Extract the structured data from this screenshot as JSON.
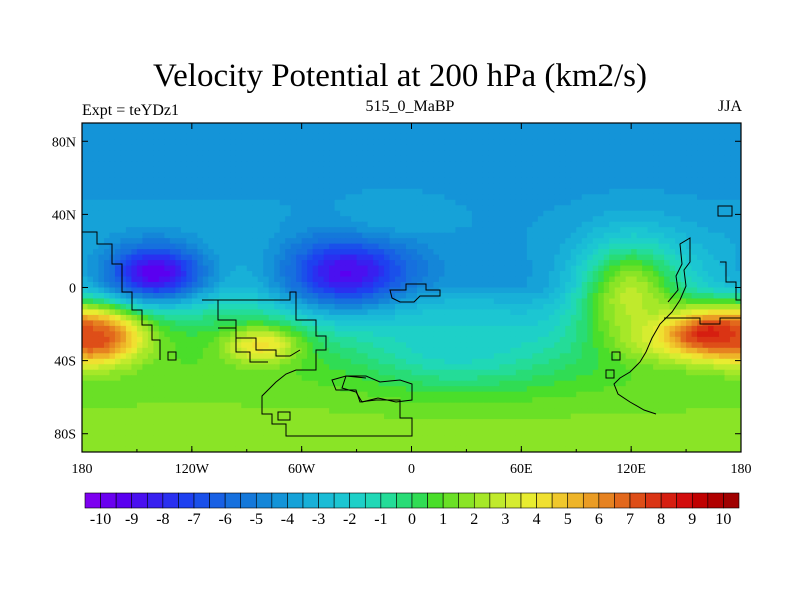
{
  "chart_data": {
    "type": "heatmap",
    "title": "Velocity Potential at 200 hPa (km2/s)",
    "left_label": "Expt = teYDz1",
    "center_label": "515_0_MaBP",
    "right_label": "JJA",
    "x_range": [
      -180,
      180
    ],
    "y_range": [
      -90,
      90
    ],
    "x_ticks": [
      {
        "value": -180,
        "label": "180"
      },
      {
        "value": -120,
        "label": "120W"
      },
      {
        "value": -60,
        "label": "60W"
      },
      {
        "value": 0,
        "label": "0"
      },
      {
        "value": 60,
        "label": "60E"
      },
      {
        "value": 120,
        "label": "120E"
      },
      {
        "value": 180,
        "label": "180"
      }
    ],
    "y_ticks": [
      {
        "value": 80,
        "label": "80N"
      },
      {
        "value": 40,
        "label": "40N"
      },
      {
        "value": 0,
        "label": "0"
      },
      {
        "value": -40,
        "label": "40S"
      },
      {
        "value": -80,
        "label": "80S"
      }
    ],
    "colorbar": {
      "min": -10.5,
      "max": 10.5,
      "step": 0.5,
      "labels": [
        "-10",
        "-9",
        "-8",
        "-7",
        "-6",
        "-5",
        "-4",
        "-3",
        "-2",
        "-1",
        "0",
        "1",
        "2",
        "3",
        "4",
        "5",
        "6",
        "7",
        "8",
        "9",
        "10"
      ],
      "colors": [
        "#7d00f0",
        "#6a00f0",
        "#5a00f0",
        "#4a10f0",
        "#3820f0",
        "#2a30f0",
        "#1e40f0",
        "#1a50ea",
        "#1860e4",
        "#1670de",
        "#1478da",
        "#1486d8",
        "#1494d8",
        "#16a2d8",
        "#18b0d8",
        "#1abcd6",
        "#1cc6d2",
        "#1ed0c8",
        "#20d8b6",
        "#24dc98",
        "#28dc76",
        "#30dc54",
        "#4ade2a",
        "#6ae026",
        "#8ae426",
        "#a6e828",
        "#c0ea2c",
        "#d6ec30",
        "#e8ec30",
        "#f0e030",
        "#f0c82c",
        "#eeb428",
        "#ea9c24",
        "#e68220",
        "#e2681c",
        "#de4e18",
        "#da3414",
        "#d61e10",
        "#d20c0c",
        "#c00000",
        "#b00000",
        "#a00000"
      ]
    },
    "anomalies": [
      {
        "lon": -140,
        "lat": 8,
        "value": -9.8,
        "slon": 28,
        "slat": 16
      },
      {
        "lon": -35,
        "lat": 8,
        "value": -9.4,
        "slon": 36,
        "slat": 20
      },
      {
        "lon": -10,
        "lat": 40,
        "value": -3.5,
        "slon": 28,
        "slat": 12
      },
      {
        "lon": 162,
        "lat": -25,
        "value": 9.6,
        "slon": 38,
        "slat": 14
      },
      {
        "lon": -172,
        "lat": -28,
        "value": 7.4,
        "slon": 22,
        "slat": 13
      },
      {
        "lon": -82,
        "lat": -32,
        "value": 4.5,
        "slon": 20,
        "slat": 10
      },
      {
        "lon": 120,
        "lat": -5,
        "value": 3.0,
        "slon": 30,
        "slat": 30
      },
      {
        "lon": 25,
        "lat": -30,
        "value": -2.0,
        "slon": 45,
        "slat": 22
      }
    ]
  }
}
